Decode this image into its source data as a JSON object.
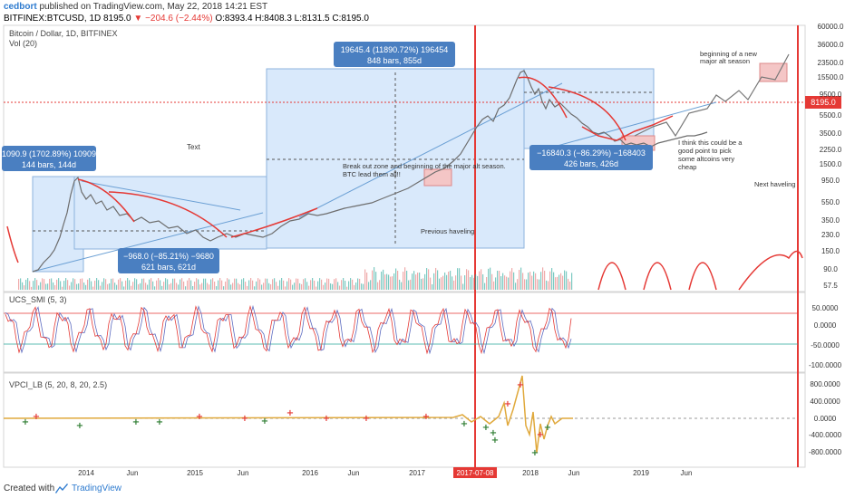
{
  "header": {
    "user": "cedbort",
    "published_text": "published on TradingView.com, May 22, 2018 14:21 EST",
    "symbol": "BITFINEX:BTCUSD, 1D",
    "last": "8195.0",
    "change": "−204.6 (−2.44%)",
    "ohlc": "O:8393.4 H:8408.3 L:8131.5 C:8195.0"
  },
  "legend": {
    "title": "Bitcoin / Dollar, 1D, BITFINEX",
    "vol": "Vol (20)",
    "ucs": "UCS_SMI (5, 3)",
    "vpci": "VPCI_LB (5, 20, 8, 20, 2.5)"
  },
  "colors": {
    "red": "#e53935",
    "box": "#cfe3fb",
    "box_border": "#6a9fd4",
    "label_bg": "#4a7fc1",
    "green": "#26a69a",
    "pinkbox": "#f4c6c6"
  },
  "annotations": {
    "box1_top": "1090.9 (1702.89%) 10909",
    "box1_bottom": "144 bars, 144d",
    "box2_top": "−968.0 (−85.21%) −9680",
    "box2_bottom": "621 bars, 621d",
    "box3_top": "19645.4 (11890.72%) 196454",
    "box3_bottom": "848 bars, 855d",
    "box4_top": "−16840.3 (−86.29%) −168403",
    "box4_bottom": "426 bars, 426d",
    "text_label": "Text",
    "breakout_line1": "Break out zone and beginning of the major alt season.",
    "breakout_line2": "BTC lead them all!!",
    "prev_halving": "Previous haveling",
    "next_halving": "Next haveling",
    "alt_line1": "beginning of a new",
    "alt_line2": "major alt season",
    "cheap_line1": "I think this could be a",
    "cheap_line2": "good point to pick",
    "cheap_line3": "some altcoins very",
    "cheap_line4": "cheap"
  },
  "price_scale": [
    "60000.0",
    "36000.0",
    "23500.0",
    "15500.0",
    "9500.0",
    "5500.0",
    "3500.0",
    "2250.0",
    "1500.0",
    "950.0",
    "550.0",
    "350.0",
    "230.0",
    "150.0",
    "90.0",
    "57.5"
  ],
  "price_tag": "8195.0",
  "smi_scale": [
    "50.0000",
    "0.0000",
    "-50.0000",
    "-100.0000"
  ],
  "vpci_scale": [
    "800.0000",
    "400.0000",
    "0.0000",
    "-400.0000",
    "-800.0000"
  ],
  "x_labels": [
    "2014",
    "Jun",
    "2015",
    "Jun",
    "2016",
    "Jun",
    "2017",
    "2017-07-08",
    "2018",
    "Jun",
    "2019",
    "Jun"
  ],
  "footer": {
    "created": "Created with",
    "brand": "TradingView"
  }
}
